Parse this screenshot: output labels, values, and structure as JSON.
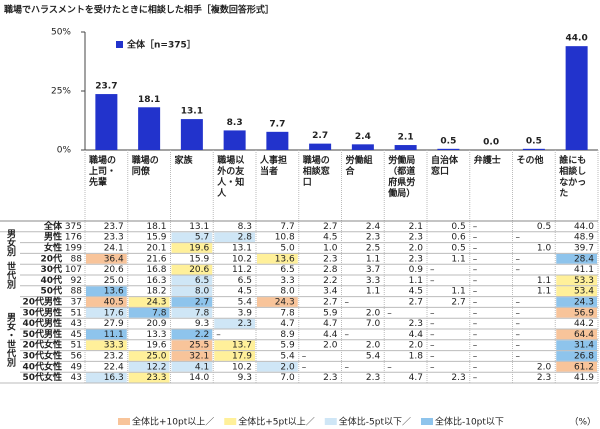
{
  "chart_data": {
    "type": "bar",
    "title": "職場でハラスメントを受けたときに相談した相手［複数回答形式］",
    "categories": [
      "職場の上司・先輩",
      "職場の同僚",
      "家族",
      "職場以外の友人・知人",
      "人事担当者",
      "職場の相談窓口",
      "労働組合",
      "労働局（都道府県労働局）",
      "自治体窓口",
      "弁護士",
      "その他",
      "誰にも相談しなかった"
    ],
    "series": [
      {
        "name": "全体［n=375］",
        "color": "#2233cc",
        "values": [
          23.7,
          18.1,
          13.1,
          8.3,
          7.7,
          2.7,
          2.4,
          2.1,
          0.5,
          0.0,
          0.5,
          44.0
        ],
        "value_labels": [
          "23.7",
          "18.1",
          "13.1",
          "8.3",
          "7.7",
          "2.7",
          "2.4",
          "2.1",
          "0.5",
          "0.0",
          "0.5",
          "44.0"
        ]
      }
    ],
    "ylim": [
      0,
      50
    ],
    "yticks": [
      {
        "value": 0,
        "label": "0%"
      },
      {
        "value": 25,
        "label": "25%"
      },
      {
        "value": 50,
        "label": "50%"
      }
    ],
    "grid": false
  },
  "table": {
    "total": {
      "label": "全体",
      "n": 375,
      "values": [
        "23.7",
        "18.1",
        "13.1",
        "8.3",
        "7.7",
        "2.7",
        "2.4",
        "2.1",
        "0.5",
        "–",
        "0.5",
        "44.0"
      ]
    },
    "groups": [
      {
        "label": "男女別",
        "rows": [
          {
            "label": "男性",
            "n": 176,
            "values": [
              "23.3",
              "15.9",
              "5.7",
              "2.8",
              "10.8",
              "4.5",
              "2.3",
              "2.3",
              "0.6",
              "–",
              "–",
              "48.9"
            ]
          },
          {
            "label": "女性",
            "n": 199,
            "values": [
              "24.1",
              "20.1",
              "19.6",
              "13.1",
              "5.0",
              "1.0",
              "2.5",
              "2.0",
              "0.5",
              "–",
              "1.0",
              "39.7"
            ]
          }
        ]
      },
      {
        "label": "世代別",
        "rows": [
          {
            "label": "20代",
            "n": 88,
            "values": [
              "36.4",
              "21.6",
              "15.9",
              "10.2",
              "13.6",
              "2.3",
              "1.1",
              "2.3",
              "1.1",
              "–",
              "–",
              "28.4"
            ]
          },
          {
            "label": "30代",
            "n": 107,
            "values": [
              "20.6",
              "16.8",
              "20.6",
              "11.2",
              "6.5",
              "2.8",
              "3.7",
              "0.9",
              "–",
              "–",
              "–",
              "41.1"
            ]
          },
          {
            "label": "40代",
            "n": 92,
            "values": [
              "25.0",
              "16.3",
              "6.5",
              "6.5",
              "3.3",
              "2.2",
              "3.3",
              "1.1",
              "–",
              "–",
              "1.1",
              "53.3"
            ]
          },
          {
            "label": "50代",
            "n": 88,
            "values": [
              "13.6",
              "18.2",
              "8.0",
              "4.5",
              "8.0",
              "3.4",
              "1.1",
              "4.5",
              "1.1",
              "–",
              "1.1",
              "53.4"
            ]
          }
        ]
      },
      {
        "label": "男女・世代別",
        "rows": [
          {
            "label": "20代男性",
            "n": 37,
            "values": [
              "40.5",
              "24.3",
              "2.7",
              "5.4",
              "24.3",
              "2.7",
              "–",
              "2.7",
              "2.7",
              "–",
              "–",
              "24.3"
            ]
          },
          {
            "label": "30代男性",
            "n": 51,
            "values": [
              "17.6",
              "7.8",
              "7.8",
              "3.9",
              "7.8",
              "5.9",
              "2.0",
              "–",
              "–",
              "–",
              "–",
              "56.9"
            ]
          },
          {
            "label": "40代男性",
            "n": 43,
            "values": [
              "27.9",
              "20.9",
              "9.3",
              "2.3",
              "4.7",
              "4.7",
              "7.0",
              "2.3",
              "–",
              "–",
              "–",
              "44.2"
            ]
          },
          {
            "label": "50代男性",
            "n": 45,
            "values": [
              "11.1",
              "13.3",
              "2.2",
              "–",
              "8.9",
              "4.4",
              "–",
              "4.4",
              "–",
              "–",
              "–",
              "64.4"
            ]
          },
          {
            "label": "20代女性",
            "n": 51,
            "values": [
              "33.3",
              "19.6",
              "25.5",
              "13.7",
              "5.9",
              "2.0",
              "2.0",
              "2.0",
              "–",
              "–",
              "–",
              "31.4"
            ]
          },
          {
            "label": "30代女性",
            "n": 56,
            "values": [
              "23.2",
              "25.0",
              "32.1",
              "17.9",
              "5.4",
              "–",
              "5.4",
              "1.8",
              "–",
              "–",
              "–",
              "26.8"
            ]
          },
          {
            "label": "40代女性",
            "n": 49,
            "values": [
              "22.4",
              "12.2",
              "4.1",
              "10.2",
              "2.0",
              "–",
              "–",
              "–",
              "–",
              "–",
              "2.0",
              "61.2"
            ]
          },
          {
            "label": "50代女性",
            "n": 43,
            "values": [
              "16.3",
              "23.3",
              "14.0",
              "9.3",
              "7.0",
              "2.3",
              "2.3",
              "4.7",
              "2.3",
              "–",
              "2.3",
              "41.9"
            ]
          }
        ]
      }
    ],
    "legend": [
      {
        "label": "全体比+10pt以上／",
        "color": "#f8c49a",
        "threshold": 10
      },
      {
        "label": "全体比+5pt以上／",
        "color": "#fff09a",
        "threshold": 5
      },
      {
        "label": "全体比-5pt以下／",
        "color": "#cfe6f6",
        "threshold": -5
      },
      {
        "label": "全体比-10pt以下",
        "color": "#8ec4ec",
        "threshold": -10
      }
    ],
    "unit": "（%）"
  }
}
